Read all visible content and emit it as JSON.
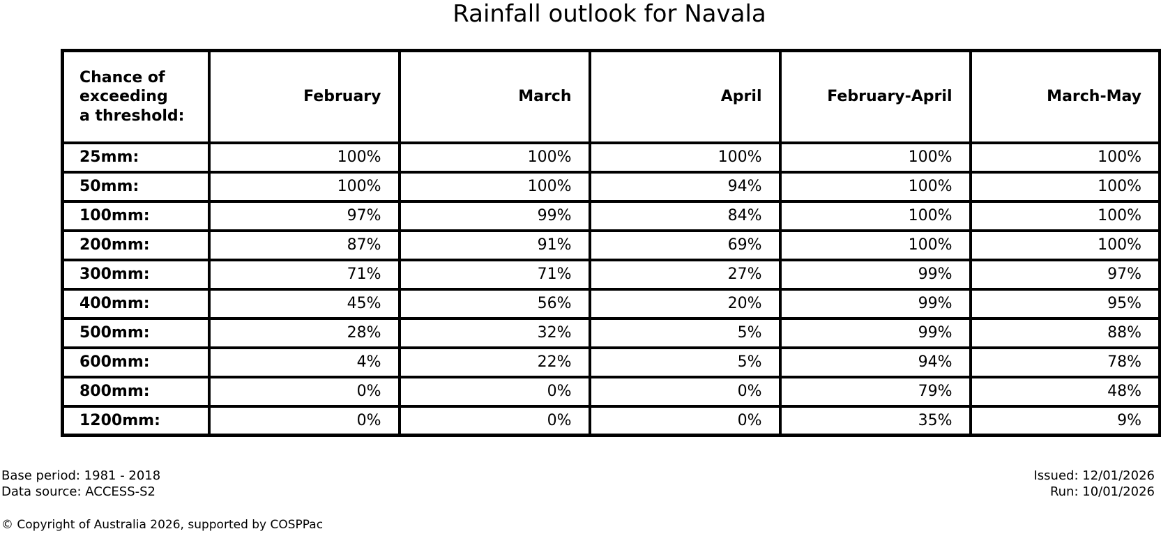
{
  "title": "Rainfall outlook for Navala",
  "chart_data": {
    "type": "table",
    "title": "Rainfall outlook for Navala",
    "corner_header": "Chance of\nexceeding\na threshold:",
    "columns": [
      "February",
      "March",
      "April",
      "February-April",
      "March-May"
    ],
    "rows": [
      {
        "label": "25mm:",
        "values": [
          "100%",
          "100%",
          "100%",
          "100%",
          "100%"
        ]
      },
      {
        "label": "50mm:",
        "values": [
          "100%",
          "100%",
          "94%",
          "100%",
          "100%"
        ]
      },
      {
        "label": "100mm:",
        "values": [
          "97%",
          "99%",
          "84%",
          "100%",
          "100%"
        ]
      },
      {
        "label": "200mm:",
        "values": [
          "87%",
          "91%",
          "69%",
          "100%",
          "100%"
        ]
      },
      {
        "label": "300mm:",
        "values": [
          "71%",
          "71%",
          "27%",
          "99%",
          "97%"
        ]
      },
      {
        "label": "400mm:",
        "values": [
          "45%",
          "56%",
          "20%",
          "99%",
          "95%"
        ]
      },
      {
        "label": "500mm:",
        "values": [
          "28%",
          "32%",
          "5%",
          "99%",
          "88%"
        ]
      },
      {
        "label": "600mm:",
        "values": [
          "4%",
          "22%",
          "5%",
          "94%",
          "78%"
        ]
      },
      {
        "label": "800mm:",
        "values": [
          "0%",
          "0%",
          "0%",
          "79%",
          "48%"
        ]
      },
      {
        "label": "1200mm:",
        "values": [
          "0%",
          "0%",
          "0%",
          "35%",
          "9%"
        ]
      }
    ],
    "layout": {
      "values_unit": "percent",
      "grid": "on"
    }
  },
  "footer": {
    "base_period": "Base period: 1981 - 2018",
    "data_source": "Data source: ACCESS-S2",
    "issued": "Issued: 12/01/2026",
    "run": "Run: 10/01/2026",
    "copyright": "© Copyright of Australia 2026, supported by COSPPac"
  },
  "colors": {
    "foreground": "#000000",
    "background": "#ffffff",
    "table_border": "#000000"
  }
}
